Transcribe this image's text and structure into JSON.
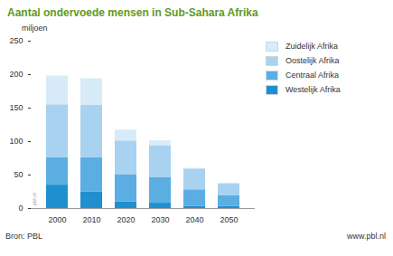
{
  "chart_data": {
    "type": "bar",
    "stacked": true,
    "title": "Aantal ondervoede mensen in Sub-Sahara Afrika",
    "y_label": "miljoen",
    "source": "Bron: PBL",
    "credit": "www.pbl.nl",
    "annotations": [
      "pbl.nl"
    ],
    "categories": [
      "2000",
      "2010",
      "2020",
      "2030",
      "2040",
      "2050"
    ],
    "series": [
      {
        "name": "Westelijk Afrika",
        "color": "#1f8fcf",
        "values": [
          35,
          25,
          10,
          8,
          3,
          3
        ]
      },
      {
        "name": "Centraal Afrika",
        "color": "#5caee2",
        "values": [
          41,
          51,
          40,
          38,
          25,
          16
        ]
      },
      {
        "name": "Oostelijk Afrika",
        "color": "#a8d2ef",
        "values": [
          79,
          78,
          51,
          48,
          31,
          18
        ]
      },
      {
        "name": "Zuidelijk Afrika",
        "color": "#d8ebf8",
        "values": [
          43,
          40,
          16,
          7,
          1,
          1
        ]
      }
    ],
    "ylim": [
      0,
      250
    ],
    "yticks": [
      0,
      50,
      100,
      150,
      200,
      250
    ],
    "grid": false,
    "legend": "right"
  }
}
